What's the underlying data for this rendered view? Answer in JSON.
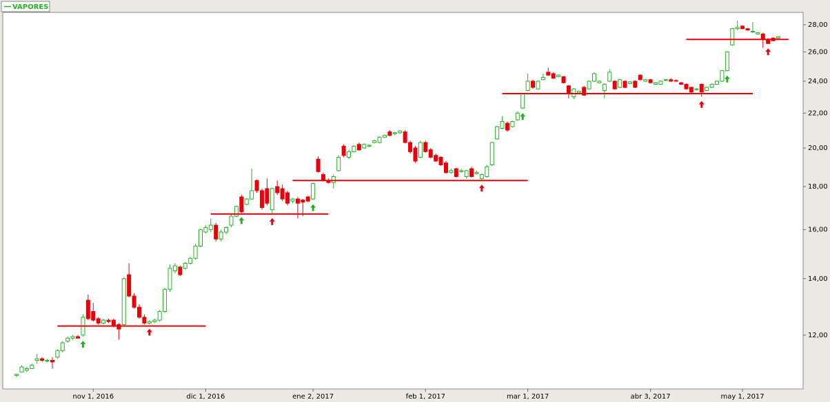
{
  "chart_data": {
    "type": "candlestick",
    "log_y": true,
    "ylim": [
      10.36,
      28.96
    ],
    "yticks": [
      {
        "value": 12,
        "label": "12,00"
      },
      {
        "value": 14,
        "label": "14,00"
      },
      {
        "value": 16,
        "label": "16,00"
      },
      {
        "value": 18,
        "label": "18,00"
      },
      {
        "value": 20,
        "label": "20,00"
      },
      {
        "value": 22,
        "label": "22,00"
      },
      {
        "value": 24,
        "label": "24,00"
      },
      {
        "value": 26,
        "label": "26,00"
      },
      {
        "value": 28,
        "label": "28,00"
      }
    ],
    "categories": [
      null,
      null,
      null,
      null,
      null,
      null,
      null,
      null,
      null,
      null,
      null,
      null,
      null,
      null,
      null,
      "nov 1, 2016",
      null,
      null,
      null,
      null,
      null,
      null,
      null,
      null,
      null,
      null,
      null,
      null,
      null,
      null,
      null,
      null,
      null,
      null,
      null,
      null,
      null,
      "dic 1, 2016",
      null,
      null,
      null,
      null,
      null,
      null,
      null,
      null,
      null,
      null,
      null,
      null,
      null,
      null,
      null,
      null,
      null,
      null,
      null,
      null,
      "ene 2, 2017",
      null,
      null,
      null,
      null,
      null,
      null,
      null,
      null,
      null,
      null,
      null,
      null,
      null,
      null,
      null,
      null,
      null,
      null,
      null,
      null,
      null,
      "feb 1, 2017",
      null,
      null,
      null,
      null,
      null,
      null,
      null,
      null,
      null,
      null,
      null,
      null,
      null,
      null,
      null,
      null,
      null,
      null,
      null,
      "mar 1, 2017",
      null,
      null,
      null,
      null,
      null,
      null,
      null,
      null,
      null,
      null,
      null,
      null,
      null,
      null,
      null,
      null,
      null,
      null,
      null,
      null,
      null,
      null,
      null,
      "abr 3, 2017",
      null,
      null,
      null,
      null,
      null,
      null,
      null,
      null,
      null,
      null,
      null,
      null,
      null,
      null,
      null,
      null,
      null,
      "may 1, 2017",
      null,
      null,
      null,
      null,
      null,
      null,
      null
    ],
    "series": [
      {
        "name": "VAPORES",
        "up_color": "#22b322",
        "down_color": "#e8000b",
        "open": [
          10.75,
          10.85,
          10.9,
          10.95,
          11.2,
          11.25,
          11.2,
          11.2,
          11.3,
          11.5,
          11.8,
          11.9,
          11.95,
          12.0,
          13.2,
          12.8,
          12.55,
          12.4,
          12.5,
          12.5,
          12.35,
          12.35,
          14.15,
          13.35,
          12.95,
          12.6,
          12.4,
          12.45,
          12.5,
          12.8,
          13.6,
          14.3,
          14.45,
          14.4,
          14.6,
          14.8,
          15.3,
          15.9,
          16.0,
          16.2,
          15.6,
          15.9,
          16.2,
          16.6,
          17.5,
          17.15,
          17.4,
          18.3,
          17.8,
          17.9,
          16.9,
          18.0,
          17.9,
          17.7,
          17.3,
          17.4,
          17.35,
          17.5,
          17.4,
          19.4,
          18.6,
          18.3,
          18.2,
          18.8,
          20.1,
          19.5,
          19.8,
          20.2,
          20.0,
          20.1,
          20.3,
          20.3,
          20.6,
          20.9,
          20.8,
          20.85,
          20.9,
          20.3,
          20.0,
          19.5,
          20.3,
          19.9,
          19.6,
          19.5,
          19.2,
          18.7,
          18.9,
          18.75,
          18.5,
          18.9,
          18.65,
          18.4,
          18.5,
          19.1,
          20.5,
          21.1,
          21.4,
          21.2,
          21.6,
          22.3,
          23.4,
          24.0,
          23.5,
          24.1,
          24.6,
          24.5,
          24.3,
          24.3,
          23.7,
          23.0,
          23.25,
          23.6,
          23.5,
          24.0,
          23.9,
          23.4,
          24.0,
          24.0,
          23.6,
          24.0,
          23.85,
          24.0,
          24.4,
          24.0,
          24.1,
          23.8,
          23.8,
          24.05,
          24.1,
          24.05,
          23.9,
          23.8,
          23.6,
          23.45,
          23.8,
          23.4,
          23.6,
          23.8,
          24.0,
          24.7,
          26.5,
          27.7,
          27.9,
          27.7,
          27.45,
          27.3,
          27.3,
          26.9,
          27.0,
          27.0
        ],
        "high": [
          10.8,
          11.05,
          11.0,
          11.1,
          11.4,
          11.3,
          11.25,
          11.3,
          11.55,
          11.8,
          11.95,
          12.0,
          12.0,
          12.7,
          13.4,
          13.1,
          12.6,
          12.55,
          12.55,
          12.55,
          12.4,
          14.05,
          14.6,
          13.45,
          13.05,
          12.7,
          12.5,
          12.55,
          12.85,
          13.65,
          14.55,
          14.6,
          14.5,
          14.65,
          14.85,
          15.4,
          16.05,
          16.2,
          16.5,
          16.3,
          16.0,
          16.15,
          16.7,
          17.1,
          17.6,
          17.45,
          18.9,
          18.35,
          17.9,
          18.4,
          17.95,
          18.3,
          18.1,
          17.8,
          17.45,
          17.5,
          17.4,
          17.55,
          18.2,
          19.55,
          18.7,
          18.4,
          18.6,
          19.6,
          20.2,
          19.9,
          20.15,
          20.3,
          20.25,
          20.2,
          20.45,
          20.65,
          20.75,
          21.0,
          20.9,
          21.0,
          21.0,
          20.4,
          20.1,
          20.4,
          20.4,
          20.0,
          19.7,
          19.55,
          19.3,
          18.9,
          18.95,
          18.9,
          18.85,
          19.0,
          18.8,
          18.65,
          19.1,
          20.35,
          21.25,
          21.8,
          21.5,
          21.55,
          22.1,
          23.25,
          24.5,
          24.1,
          24.05,
          24.5,
          24.9,
          24.6,
          24.45,
          24.35,
          23.75,
          23.55,
          23.4,
          23.7,
          24.05,
          24.6,
          24.05,
          23.85,
          24.8,
          24.05,
          24.15,
          24.05,
          24.0,
          24.05,
          24.45,
          24.15,
          24.15,
          23.95,
          24.05,
          24.15,
          24.2,
          24.1,
          23.95,
          23.85,
          23.65,
          23.55,
          23.85,
          23.65,
          23.85,
          24.05,
          24.75,
          26.05,
          27.75,
          28.3,
          27.95,
          27.75,
          28.2,
          27.45,
          27.4,
          27.0,
          27.05,
          27.15
        ],
        "low": [
          10.7,
          10.85,
          10.85,
          10.95,
          11.1,
          11.15,
          11.15,
          10.95,
          11.25,
          11.45,
          11.75,
          11.85,
          11.9,
          11.95,
          12.5,
          12.45,
          12.35,
          12.35,
          12.4,
          12.25,
          11.85,
          12.3,
          13.3,
          12.9,
          12.55,
          12.35,
          12.35,
          12.4,
          12.45,
          12.75,
          13.5,
          14.2,
          14.1,
          14.35,
          14.55,
          14.75,
          15.25,
          15.85,
          15.9,
          15.5,
          15.5,
          15.8,
          16.1,
          16.55,
          16.75,
          17.1,
          17.35,
          17.7,
          16.9,
          17.1,
          16.7,
          17.6,
          17.3,
          17.1,
          17.2,
          16.5,
          16.6,
          17.25,
          17.35,
          18.7,
          18.25,
          18.15,
          17.9,
          18.75,
          19.5,
          19.4,
          19.75,
          19.85,
          19.95,
          20.05,
          20.25,
          20.25,
          20.55,
          20.65,
          20.7,
          20.8,
          20.25,
          19.7,
          19.2,
          19.45,
          19.75,
          19.45,
          19.25,
          19.05,
          18.65,
          18.65,
          18.45,
          18.7,
          18.4,
          18.45,
          18.6,
          18.3,
          18.45,
          19.05,
          20.45,
          21.05,
          20.9,
          21.15,
          21.55,
          22.25,
          23.35,
          23.5,
          23.45,
          24.05,
          24.35,
          24.15,
          24.25,
          23.85,
          22.9,
          22.85,
          23.2,
          23.05,
          23.45,
          23.95,
          23.85,
          22.9,
          23.95,
          23.45,
          23.55,
          23.55,
          23.8,
          23.55,
          24.05,
          23.95,
          23.85,
          23.75,
          23.75,
          24.0,
          23.95,
          23.95,
          23.75,
          23.45,
          23.25,
          23.4,
          23.0,
          23.35,
          23.55,
          23.75,
          23.95,
          24.65,
          26.45,
          27.6,
          27.65,
          27.55,
          27.4,
          27.25,
          26.3,
          26.55,
          26.75,
          26.95
        ],
        "close": [
          10.78,
          11.0,
          10.95,
          11.05,
          11.25,
          11.2,
          11.2,
          11.15,
          11.5,
          11.75,
          11.9,
          11.95,
          11.9,
          12.6,
          12.55,
          12.5,
          12.4,
          12.5,
          12.45,
          12.3,
          12.2,
          14.0,
          13.35,
          12.95,
          12.6,
          12.4,
          12.45,
          12.5,
          12.8,
          13.6,
          14.4,
          14.5,
          14.15,
          14.6,
          14.8,
          15.3,
          16.0,
          16.1,
          16.2,
          15.6,
          15.9,
          16.1,
          16.6,
          17.05,
          16.8,
          17.4,
          17.8,
          17.8,
          17.0,
          17.2,
          17.9,
          17.7,
          17.4,
          17.2,
          17.4,
          17.2,
          17.25,
          17.3,
          18.15,
          18.75,
          18.3,
          18.2,
          18.5,
          19.5,
          19.6,
          19.8,
          20.1,
          19.9,
          20.2,
          20.15,
          20.4,
          20.6,
          20.7,
          20.7,
          20.85,
          20.95,
          20.3,
          19.8,
          19.3,
          20.3,
          19.8,
          19.5,
          19.3,
          19.1,
          18.7,
          18.8,
          18.5,
          18.8,
          18.8,
          18.5,
          18.7,
          18.6,
          19.0,
          20.3,
          21.2,
          21.5,
          21.0,
          21.5,
          22.0,
          23.2,
          24.0,
          23.6,
          24.0,
          24.25,
          24.4,
          24.2,
          24.4,
          23.9,
          23.2,
          23.5,
          23.35,
          23.1,
          24.0,
          24.5,
          24.0,
          23.8,
          24.6,
          23.5,
          24.1,
          23.6,
          23.95,
          23.6,
          24.1,
          24.1,
          23.9,
          23.9,
          24.0,
          24.1,
          24.0,
          24.0,
          23.8,
          23.5,
          23.3,
          23.5,
          23.3,
          23.6,
          23.8,
          24.0,
          24.7,
          26.0,
          27.7,
          27.8,
          27.7,
          27.6,
          27.5,
          27.4,
          26.9,
          26.6,
          26.8,
          27.1
        ]
      }
    ],
    "levels": [
      {
        "value": 12.3,
        "from": 10,
        "to": 35,
        "color": "#e8000b"
      },
      {
        "value": 16.7,
        "from": 40,
        "to": 59,
        "color": "#e8000b"
      },
      {
        "value": 18.3,
        "from": 56,
        "to": 98,
        "color": "#e8000b"
      },
      {
        "value": 23.2,
        "from": 97,
        "to": 142,
        "color": "#e8000b"
      },
      {
        "value": 26.9,
        "from": 133,
        "to": 149,
        "color": "#e8000b"
      }
    ],
    "signals": [
      {
        "index": 13,
        "color": "#22b322"
      },
      {
        "index": 44,
        "color": "#22b322"
      },
      {
        "index": 58,
        "color": "#22b322"
      },
      {
        "index": 99,
        "color": "#22b322"
      },
      {
        "index": 139,
        "color": "#22b322"
      },
      {
        "index": 26,
        "color": "#e8000b"
      },
      {
        "index": 50,
        "color": "#e8000b"
      },
      {
        "index": 91,
        "color": "#e8000b"
      },
      {
        "index": 134,
        "color": "#e8000b"
      },
      {
        "index": 147,
        "color": "#e8000b"
      }
    ]
  }
}
